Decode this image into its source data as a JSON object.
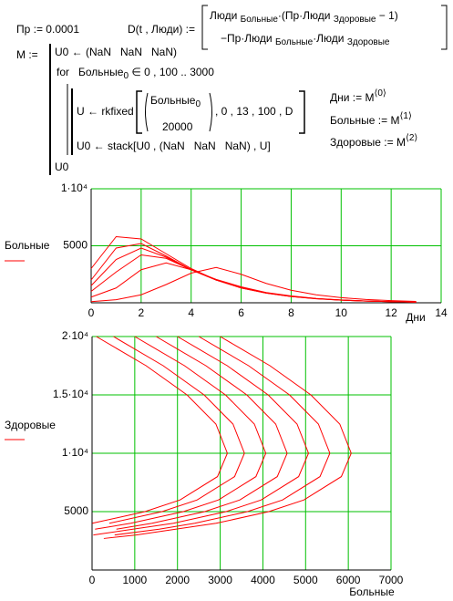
{
  "worksheet": {
    "pr": [
      {
        "t": "Пр := 0.0001"
      }
    ],
    "d_def": [
      {
        "t": "D(t , Люди) :="
      }
    ],
    "d_row1": [
      {
        "t": "Люди "
      },
      {
        "t": "Больные",
        "s": "sub"
      },
      {
        "t": "·(Пр·Люди "
      },
      {
        "t": "Здоровые",
        "s": "sub"
      },
      {
        "t": " − 1)"
      }
    ],
    "d_row2": [
      {
        "t": "−Пр·Люди "
      },
      {
        "t": "Больные",
        "s": "sub"
      },
      {
        "t": "·Люди "
      },
      {
        "t": "Здоровые",
        "s": "sub"
      }
    ],
    "m_def": [
      {
        "t": "M :="
      }
    ],
    "p1": [
      {
        "t": "U0 ← (NaN   NaN   NaN)"
      }
    ],
    "p2": [
      {
        "t": "for   Больные"
      },
      {
        "t": "0",
        "s": "sub"
      },
      {
        "t": " ∈ 0 , 100 .. 3000"
      }
    ],
    "p3": [
      {
        "t": "U ← rkfixed"
      }
    ],
    "p3_m1": [
      {
        "t": "Больные"
      },
      {
        "t": "0",
        "s": "sub"
      }
    ],
    "p3_m2": [
      {
        "t": "20000"
      }
    ],
    "p3_rest": [
      {
        "t": ", 0 , 13 , 100 , D"
      }
    ],
    "p4": [
      {
        "t": "U0 ← stack[U0 , (NaN   NaN   NaN) , U]"
      }
    ],
    "p5": [
      {
        "t": "U0"
      }
    ],
    "r1": [
      {
        "t": "Дни := M"
      },
      {
        "t": "⟨0⟩",
        "s": "sup"
      }
    ],
    "r2": [
      {
        "t": "Больные := M"
      },
      {
        "t": "⟨1⟩",
        "s": "sup"
      }
    ],
    "r3": [
      {
        "t": "Здоровые := M"
      },
      {
        "t": "⟨2⟩",
        "s": "sup"
      }
    ]
  },
  "chart_data": [
    {
      "type": "line",
      "x_label": "Дни",
      "y_label": "Больные",
      "color": "#ff0000",
      "grid": true,
      "grid_color": "#00c000",
      "xlim": [
        0,
        14
      ],
      "xticks": [
        0,
        2,
        4,
        6,
        8,
        10,
        12,
        14
      ],
      "ylim": [
        0,
        10000
      ],
      "yticks": [
        5000,
        {
          "value": 10000,
          "label": "1·10⁴"
        }
      ],
      "x": [
        0,
        1,
        2,
        3,
        4,
        5,
        6,
        7,
        8,
        9,
        10,
        11,
        12,
        13
      ],
      "series": [
        {
          "values": [
            100,
            270,
            700,
            1600,
            2600,
            3100,
            2500,
            1700,
            1100,
            700,
            450,
            290,
            190,
            120
          ]
        },
        {
          "values": [
            500,
            1300,
            2900,
            3500,
            2900,
            2050,
            1400,
            900,
            600,
            380,
            250,
            160,
            105,
            68
          ]
        },
        {
          "values": [
            1000,
            2700,
            4200,
            3900,
            2900,
            2000,
            1350,
            880,
            570,
            370,
            240,
            155,
            100,
            65
          ]
        },
        {
          "values": [
            1500,
            3800,
            4800,
            4000,
            2900,
            2000,
            1330,
            860,
            560,
            365,
            235,
            152,
            100,
            62
          ]
        },
        {
          "values": [
            2000,
            4800,
            5200,
            4100,
            2900,
            2000,
            1300,
            850,
            550,
            360,
            230,
            150,
            100,
            60
          ]
        },
        {
          "values": [
            3000,
            5800,
            5600,
            4300,
            3000,
            2000,
            1300,
            850,
            550,
            350,
            230,
            150,
            100,
            60
          ]
        }
      ]
    },
    {
      "type": "line",
      "x_label": "Больные",
      "y_label": "Здоровые",
      "color": "#ff0000",
      "grid": true,
      "grid_color": "#00c000",
      "xlim": [
        0,
        7000
      ],
      "xticks": [
        0,
        1000,
        2000,
        3000,
        4000,
        5000,
        6000,
        7000
      ],
      "ylim": [
        0,
        20000
      ],
      "yticks": [
        5000,
        {
          "value": 10000,
          "label": "1·10⁴"
        },
        {
          "value": 15000,
          "label": "1.5·10⁴"
        },
        {
          "value": 20000,
          "label": "2·10⁴"
        }
      ],
      "series": [
        {
          "x": [
            100,
            1265,
            2223,
            2900,
            3168,
            2937,
            2060,
            1237,
            5
          ],
          "values": [
            20000,
            17500,
            15000,
            12500,
            10000,
            8000,
            6000,
            5000,
            4000
          ]
        },
        {
          "x": [
            500,
            1665,
            2623,
            3300,
            3568,
            3337,
            2460,
            1637,
            405
          ],
          "values": [
            20000,
            17500,
            15000,
            12500,
            10000,
            8000,
            6000,
            5000,
            4000
          ]
        },
        {
          "x": [
            1000,
            2165,
            3123,
            3800,
            4068,
            3837,
            2960,
            2137,
            905,
            70
          ],
          "values": [
            20000,
            17500,
            15000,
            12500,
            10000,
            8000,
            6000,
            5000,
            4000,
            3500
          ]
        },
        {
          "x": [
            1500,
            2665,
            3623,
            4300,
            4568,
            4337,
            3460,
            2637,
            1405,
            570
          ],
          "values": [
            20000,
            17500,
            15000,
            12500,
            10000,
            8000,
            6000,
            5000,
            4000,
            3500
          ]
        },
        {
          "x": [
            2000,
            3165,
            4123,
            4800,
            5068,
            4837,
            3960,
            3137,
            1905,
            29
          ],
          "values": [
            20000,
            17500,
            15000,
            12500,
            10000,
            8000,
            6000,
            5000,
            4000,
            3000
          ]
        },
        {
          "x": [
            2500,
            3665,
            4623,
            5300,
            5568,
            5337,
            4460,
            3637,
            2405,
            1570,
            529
          ],
          "values": [
            20000,
            17500,
            15000,
            12500,
            10000,
            8000,
            6000,
            5000,
            4000,
            3500,
            3000
          ]
        },
        {
          "x": [
            3000,
            4165,
            5123,
            5800,
            6068,
            5837,
            4960,
            4137,
            2905,
            1029,
            275
          ],
          "values": [
            20000,
            17500,
            15000,
            12500,
            10000,
            8000,
            6000,
            5000,
            4000,
            3000,
            2700
          ]
        }
      ]
    }
  ]
}
